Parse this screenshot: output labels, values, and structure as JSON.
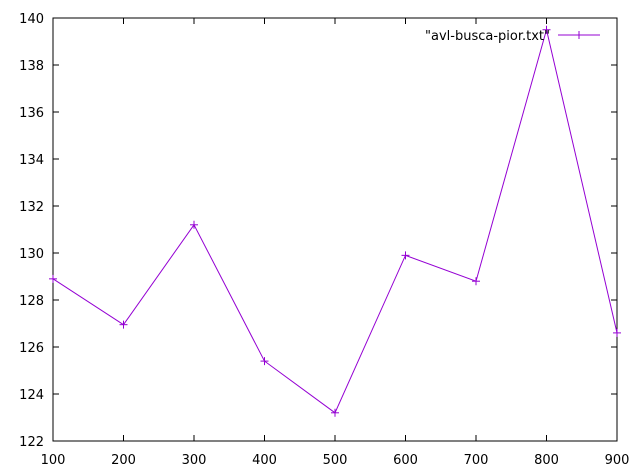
{
  "chart_data": {
    "type": "line",
    "title": "",
    "xlabel": "",
    "ylabel": "",
    "xlim": [
      100,
      900
    ],
    "ylim": [
      122,
      140
    ],
    "x_ticks": [
      100,
      200,
      300,
      400,
      500,
      600,
      700,
      800,
      900
    ],
    "y_ticks": [
      122,
      124,
      126,
      128,
      130,
      132,
      134,
      136,
      138,
      140
    ],
    "grid": false,
    "legend_position": "top-right",
    "series": [
      {
        "name": "\"avl-busca-pior.txt\"",
        "color": "#9400d3",
        "marker": "plus",
        "x": [
          100,
          200,
          300,
          400,
          500,
          600,
          700,
          800,
          900
        ],
        "y": [
          128.9,
          126.95,
          131.2,
          125.4,
          123.2,
          129.9,
          128.8,
          139.5,
          126.6
        ]
      }
    ]
  }
}
